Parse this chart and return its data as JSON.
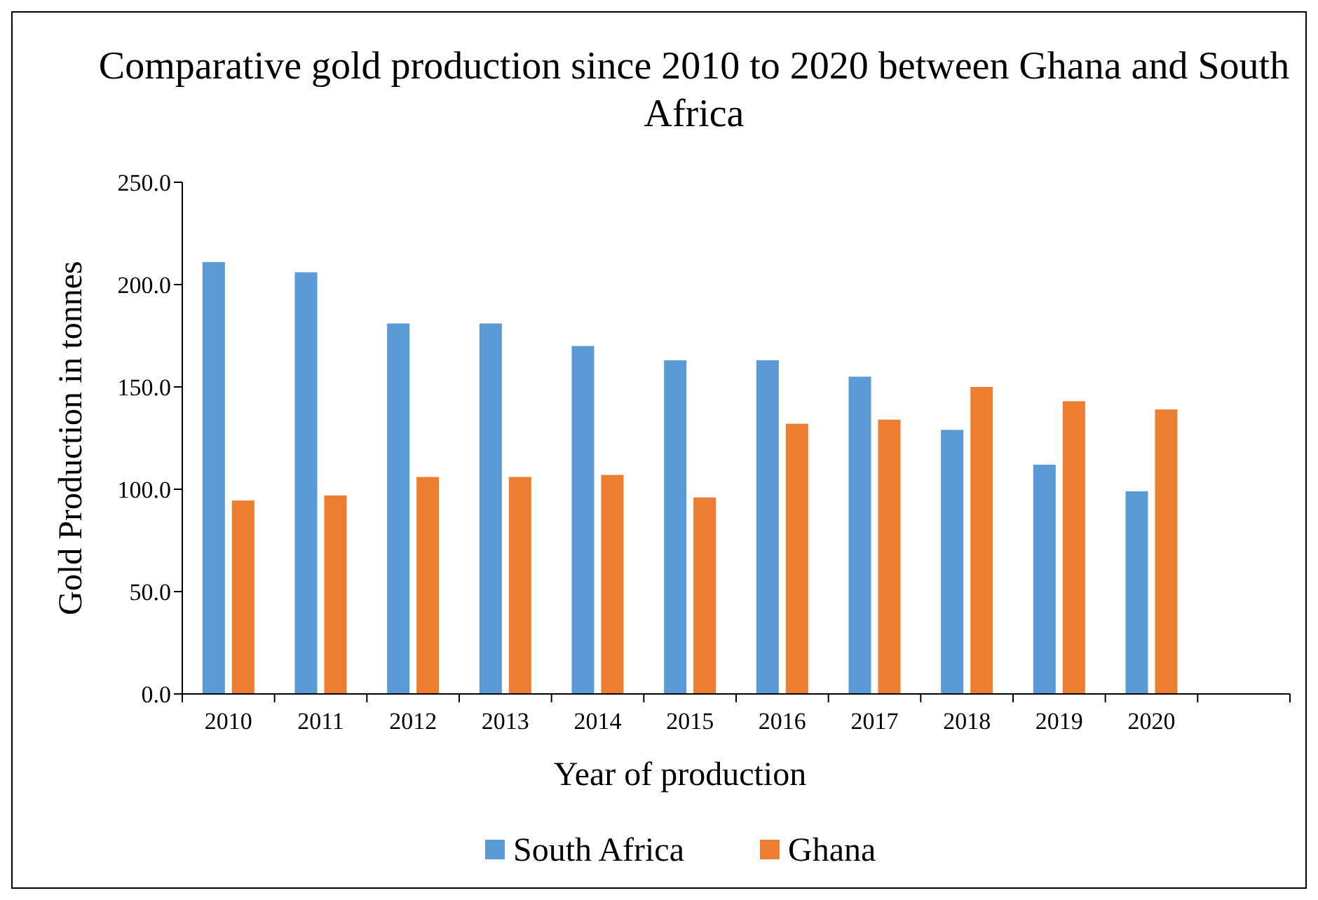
{
  "chart_data": {
    "type": "bar",
    "title": "Comparative gold production since 2010 to 2020 between Ghana and South Africa",
    "xlabel": "Year of production",
    "ylabel": "Gold Production in tonnes",
    "categories": [
      "2010",
      "2011",
      "2012",
      "2013",
      "2014",
      "2015",
      "2016",
      "2017",
      "2018",
      "2019",
      "2020",
      null
    ],
    "series": [
      {
        "name": "South Africa",
        "color": "#5b9bd5",
        "values": [
          211,
          206,
          181,
          181,
          170,
          163,
          163,
          155,
          129,
          112,
          99,
          null
        ]
      },
      {
        "name": "Ghana",
        "color": "#ed7d31",
        "values": [
          94.5,
          97,
          106,
          106,
          107,
          96,
          132,
          134,
          150,
          143,
          139,
          null
        ]
      }
    ],
    "ylim": [
      0,
      250
    ],
    "yticks": [
      {
        "value": 0,
        "label": "0.0"
      },
      {
        "value": 50,
        "label": "50.0"
      },
      {
        "value": 100,
        "label": "100.0"
      },
      {
        "value": 150,
        "label": "150.0"
      },
      {
        "value": 200,
        "label": "200.0"
      },
      {
        "value": 250,
        "label": "250.0"
      }
    ],
    "grid": false,
    "legend": "bottom"
  }
}
